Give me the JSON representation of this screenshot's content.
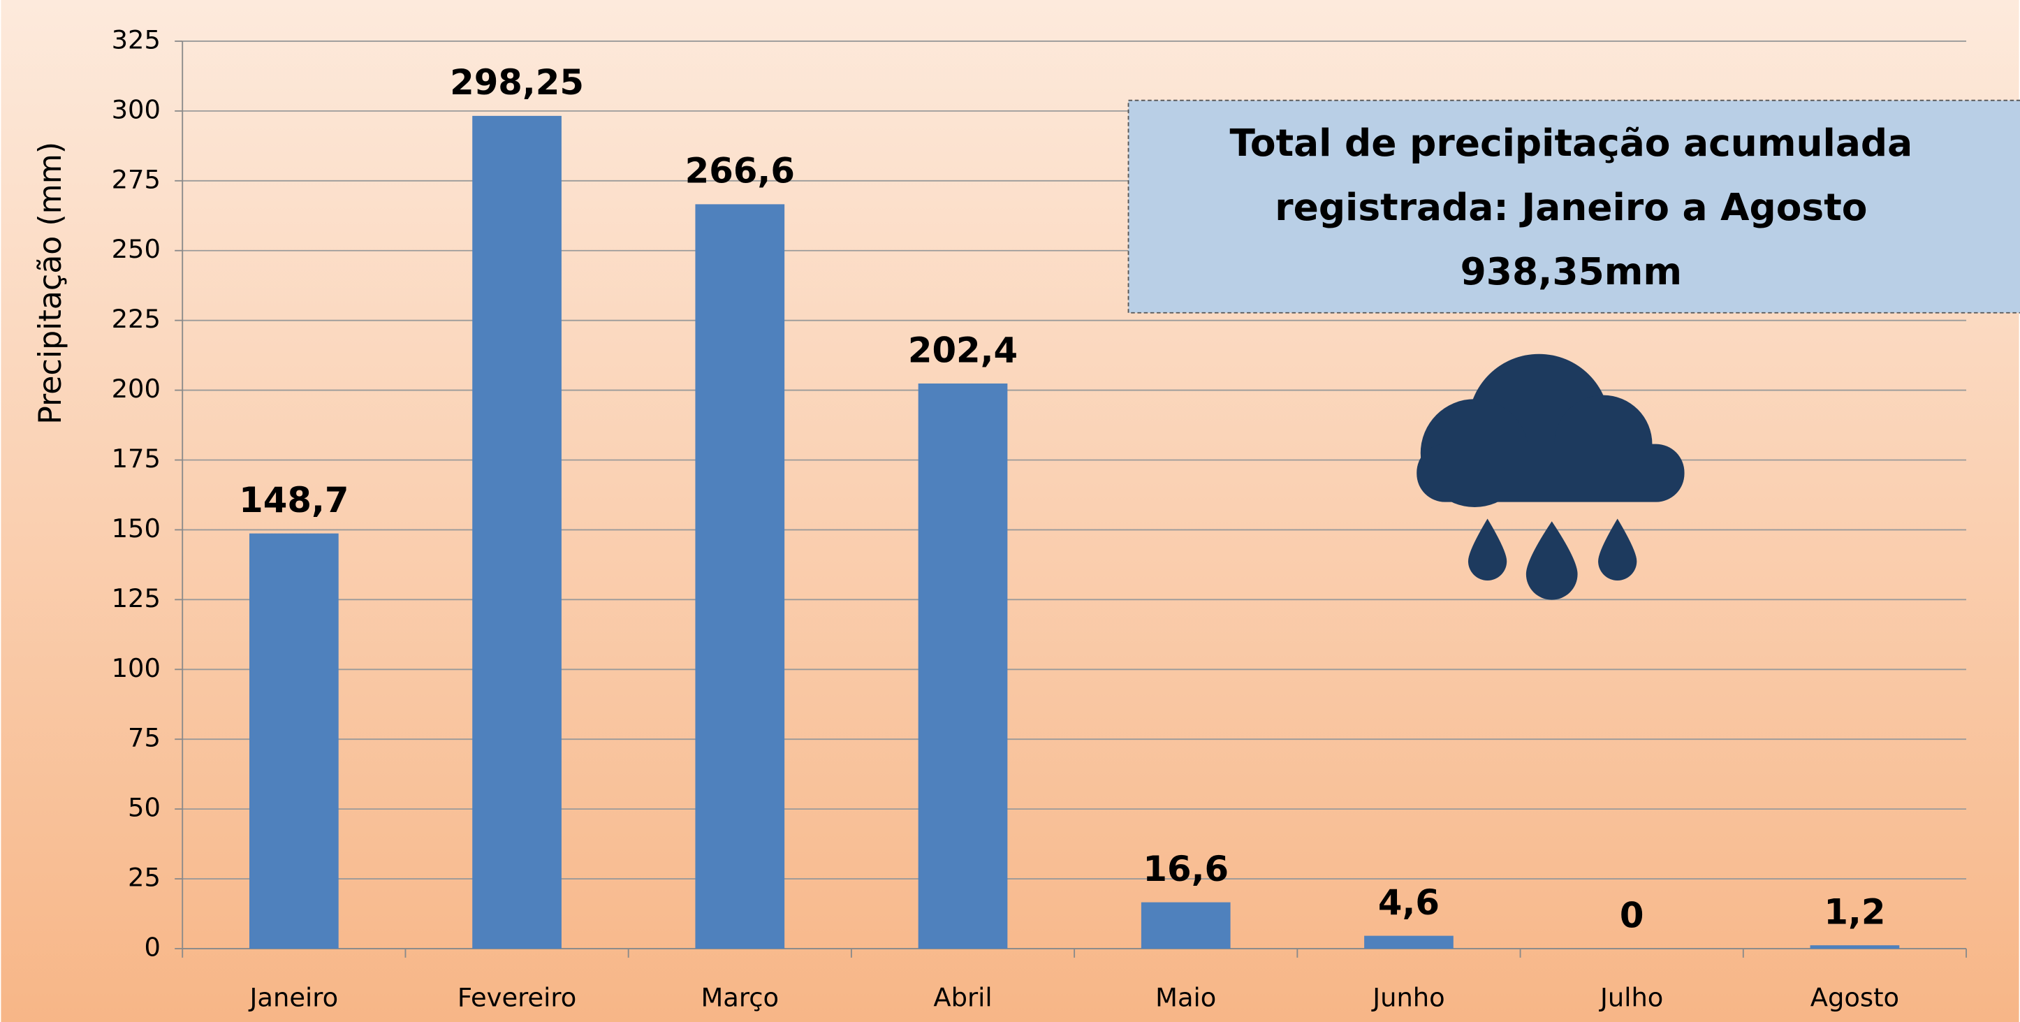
{
  "chart_data": {
    "type": "bar",
    "y_axis_label": "Precipitação (mm)",
    "annotation": [
      "Total de precipitação acumulada",
      "registrada: Janeiro a Agosto",
      "938,35mm"
    ],
    "categories": [
      "Janeiro",
      "Fevereiro",
      "Março",
      "Abril",
      "Maio",
      "Junho",
      "Julho",
      "Agosto"
    ],
    "values": [
      148.7,
      298.25,
      266.6,
      202.4,
      16.6,
      4.6,
      0,
      1.2
    ],
    "value_labels": [
      "148,7",
      "298,25",
      "266,6",
      "202,4",
      "16,6",
      "4,6",
      "0",
      "1,2"
    ],
    "color": "#4f81bd",
    "ylim": [
      0,
      325
    ],
    "yticks": [
      0,
      25,
      50,
      75,
      100,
      125,
      150,
      175,
      200,
      225,
      250,
      275,
      300,
      325
    ],
    "grid": true
  }
}
